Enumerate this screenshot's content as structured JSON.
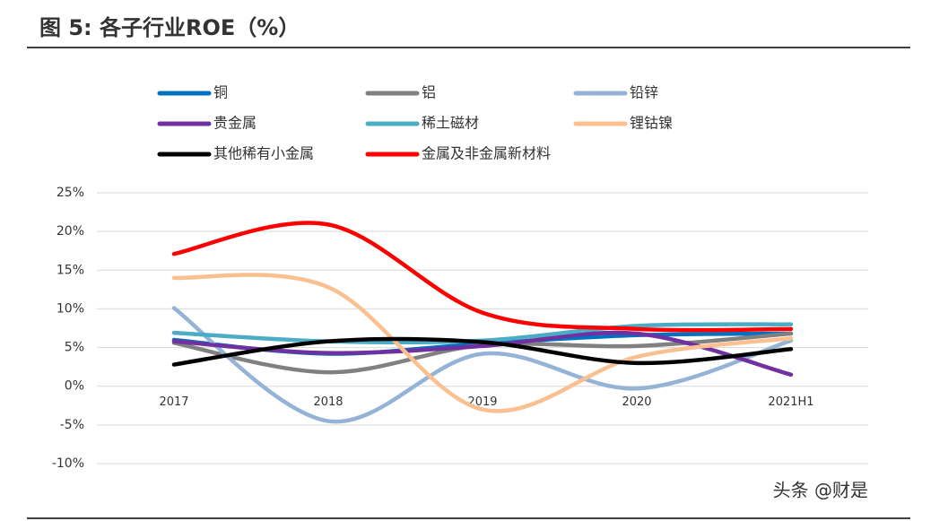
{
  "chart_data": {
    "type": "line",
    "title": "图 5: 各子行业ROE（%）",
    "categories": [
      "2017",
      "2018",
      "2019",
      "2020",
      "2021H1"
    ],
    "series": [
      {
        "name": "铜",
        "color": "#0070c0",
        "values": [
          6.0,
          4.2,
          5.5,
          6.6,
          6.8
        ]
      },
      {
        "name": "铝",
        "color": "#808080",
        "values": [
          5.6,
          1.8,
          5.3,
          5.2,
          6.8
        ]
      },
      {
        "name": "铅锌",
        "color": "#95b3d7",
        "values": [
          10.1,
          -4.5,
          4.2,
          -0.3,
          5.9
        ]
      },
      {
        "name": "贵金属",
        "color": "#7030a0",
        "values": [
          5.8,
          4.3,
          5.2,
          6.8,
          1.5
        ]
      },
      {
        "name": "稀土磁材",
        "color": "#4bacc6",
        "values": [
          6.9,
          5.8,
          5.9,
          7.8,
          8.0
        ]
      },
      {
        "name": "锂钴镍",
        "color": "#fac090",
        "values": [
          14.0,
          12.8,
          -3.0,
          3.8,
          6.2
        ]
      },
      {
        "name": "其他稀有小金属",
        "color": "#000000",
        "values": [
          2.8,
          5.8,
          5.7,
          3.0,
          4.8
        ]
      },
      {
        "name": "金属及非金属新材料",
        "color": "#ff0000",
        "values": [
          17.1,
          20.9,
          9.5,
          7.4,
          7.4
        ]
      }
    ],
    "ylim": [
      -10,
      25
    ],
    "yticks": [
      {
        "value": -10,
        "label": "-10%"
      },
      {
        "value": -5,
        "label": "-5%"
      },
      {
        "value": 0,
        "label": "0%"
      },
      {
        "value": 5,
        "label": "5%"
      },
      {
        "value": 10,
        "label": "10%"
      },
      {
        "value": 15,
        "label": "15%"
      },
      {
        "value": 20,
        "label": "20%"
      },
      {
        "value": 25,
        "label": "25%"
      }
    ],
    "grid": true,
    "legend": "top",
    "watermark": "头条 @财是"
  }
}
